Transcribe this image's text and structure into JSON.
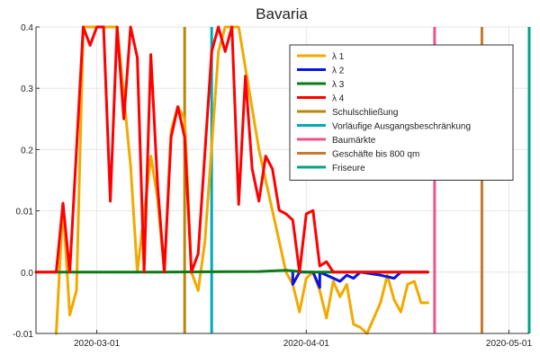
{
  "chart_data": {
    "type": "line",
    "title": "Bavaria",
    "xlabel": "",
    "ylabel": "",
    "x_axis": {
      "type": "date",
      "range": [
        "2020-02-21",
        "2020-05-04"
      ],
      "ticks": [
        "2020-03-01",
        "2020-04-01",
        "2020-05-01"
      ]
    },
    "y_axis": {
      "range": [
        -0.01,
        0.4
      ],
      "ticks": [
        {
          "value": -0.01,
          "label": "-0.01"
        },
        {
          "value": 0.0,
          "label": "0.0"
        },
        {
          "value": 0.01,
          "label": "0.01"
        },
        {
          "value": 0.2,
          "label": "0.2"
        },
        {
          "value": 0.3,
          "label": "0.3"
        },
        {
          "value": 0.4,
          "label": "0.4"
        }
      ]
    },
    "grid": true,
    "legend_position": "top-right",
    "series": [
      {
        "name": "λ 1",
        "color": "#f2a900",
        "points": [
          [
            "2020-02-24",
            -0.01
          ],
          [
            "2020-02-25",
            0.03
          ],
          [
            "2020-02-26",
            -0.007
          ],
          [
            "2020-02-27",
            -0.003
          ],
          [
            "2020-02-28",
            0.4
          ],
          [
            "2020-03-04",
            0.4
          ],
          [
            "2020-03-06",
            0.15
          ],
          [
            "2020-03-07",
            0.0
          ],
          [
            "2020-03-09",
            0.18
          ],
          [
            "2020-03-10",
            0.05
          ],
          [
            "2020-03-11",
            0.0
          ],
          [
            "2020-03-12",
            0.23
          ],
          [
            "2020-03-13",
            0.27
          ],
          [
            "2020-03-14",
            0.25
          ],
          [
            "2020-03-15",
            0.0
          ],
          [
            "2020-03-16",
            -0.003
          ],
          [
            "2020-03-17",
            0.005
          ],
          [
            "2020-03-19",
            0.36
          ],
          [
            "2020-03-20",
            0.4
          ],
          [
            "2020-03-22",
            0.4
          ],
          [
            "2020-03-25",
            0.2
          ],
          [
            "2020-03-29",
            0.0
          ],
          [
            "2020-03-30",
            -0.002
          ],
          [
            "2020-03-31",
            -0.0065
          ],
          [
            "2020-04-01",
            -0.001
          ],
          [
            "2020-04-02",
            0.0
          ],
          [
            "2020-04-03",
            -0.003
          ],
          [
            "2020-04-04",
            -0.0075
          ],
          [
            "2020-04-05",
            -0.0015
          ],
          [
            "2020-04-06",
            -0.004
          ],
          [
            "2020-04-07",
            -0.002
          ],
          [
            "2020-04-08",
            -0.0085
          ],
          [
            "2020-04-09",
            -0.009
          ],
          [
            "2020-04-10",
            -0.01
          ],
          [
            "2020-04-12",
            -0.005
          ],
          [
            "2020-04-13",
            -0.0005
          ],
          [
            "2020-04-14",
            -0.0045
          ],
          [
            "2020-04-15",
            -0.0065
          ],
          [
            "2020-04-16",
            -0.002
          ],
          [
            "2020-04-17",
            -0.0015
          ],
          [
            "2020-04-18",
            -0.005
          ],
          [
            "2020-04-19",
            -0.005
          ]
        ]
      },
      {
        "name": "λ 2",
        "color": "#0a13e0",
        "points": [
          [
            "2020-03-30",
            0.0
          ],
          [
            "2020-03-30",
            -0.002
          ],
          [
            "2020-03-31",
            0.0
          ],
          [
            "2020-04-02",
            0.0
          ],
          [
            "2020-04-03",
            -0.0025
          ],
          [
            "2020-04-03",
            0.0
          ],
          [
            "2020-04-06",
            -0.0015
          ],
          [
            "2020-04-07",
            -0.0005
          ],
          [
            "2020-04-08",
            -0.001
          ],
          [
            "2020-04-09",
            0.0
          ],
          [
            "2020-04-12",
            -0.0005
          ],
          [
            "2020-04-14",
            -0.001
          ],
          [
            "2020-04-15",
            0.0
          ],
          [
            "2020-04-19",
            0.0
          ]
        ]
      },
      {
        "name": "λ 3",
        "color": "#0b7a16",
        "points": [
          [
            "2020-02-21",
            0.0
          ],
          [
            "2020-03-10",
            0.0
          ],
          [
            "2020-03-25",
            0.0001
          ],
          [
            "2020-03-29",
            0.0003
          ],
          [
            "2020-03-31",
            0.0001
          ],
          [
            "2020-04-01",
            0.0
          ],
          [
            "2020-04-19",
            0.0
          ]
        ]
      },
      {
        "name": "λ 4",
        "color": "#ff0000",
        "points": [
          [
            "2020-02-21",
            0.0
          ],
          [
            "2020-02-24",
            0.0
          ],
          [
            "2020-02-25",
            0.034
          ],
          [
            "2020-02-26",
            0.0
          ],
          [
            "2020-02-27",
            0.2
          ],
          [
            "2020-02-28",
            0.4
          ],
          [
            "2020-02-29",
            0.37
          ],
          [
            "2020-03-01",
            0.4
          ],
          [
            "2020-03-02",
            0.4
          ],
          [
            "2020-03-03",
            0.04
          ],
          [
            "2020-03-04",
            0.4
          ],
          [
            "2020-03-05",
            0.25
          ],
          [
            "2020-03-06",
            0.4
          ],
          [
            "2020-03-07",
            0.35
          ],
          [
            "2020-03-08",
            0.0
          ],
          [
            "2020-03-09",
            0.355
          ],
          [
            "2020-03-10",
            0.09
          ],
          [
            "2020-03-11",
            0.0
          ],
          [
            "2020-03-12",
            0.22
          ],
          [
            "2020-03-13",
            0.27
          ],
          [
            "2020-03-14",
            0.22
          ],
          [
            "2020-03-15",
            0.0
          ],
          [
            "2020-03-16",
            0.003
          ],
          [
            "2020-03-18",
            0.36
          ],
          [
            "2020-03-19",
            0.4
          ],
          [
            "2020-03-20",
            0.36
          ],
          [
            "2020-03-21",
            0.4
          ],
          [
            "2020-03-22",
            0.03
          ],
          [
            "2020-03-23",
            0.32
          ],
          [
            "2020-03-24",
            0.14
          ],
          [
            "2020-03-25",
            0.04
          ],
          [
            "2020-03-26",
            0.18
          ],
          [
            "2020-03-27",
            0.14
          ],
          [
            "2020-03-28",
            0.012
          ],
          [
            "2020-03-29",
            0.0095
          ],
          [
            "2020-03-30",
            0.0085
          ],
          [
            "2020-03-31",
            0.0
          ],
          [
            "2020-04-01",
            0.0095
          ],
          [
            "2020-04-02",
            0.011
          ],
          [
            "2020-04-03",
            0.001
          ],
          [
            "2020-04-04",
            0.0017
          ],
          [
            "2020-04-05",
            0.0
          ],
          [
            "2020-04-19",
            0.0
          ]
        ]
      }
    ],
    "vertical_lines": [
      {
        "name": "Schulschließung",
        "date": "2020-03-14",
        "color": "#b8860b"
      },
      {
        "name": "Vorläufige Ausgangsbeschränkung",
        "date": "2020-03-18",
        "color": "#00a9b5"
      },
      {
        "name": "Baumärkte",
        "date": "2020-04-20",
        "color": "#f0528a"
      },
      {
        "name": "Geschäfte bis 800 qm",
        "date": "2020-04-27",
        "color": "#c8792a"
      },
      {
        "name": "Friseure",
        "date": "2020-05-04",
        "color": "#00a383"
      }
    ]
  }
}
